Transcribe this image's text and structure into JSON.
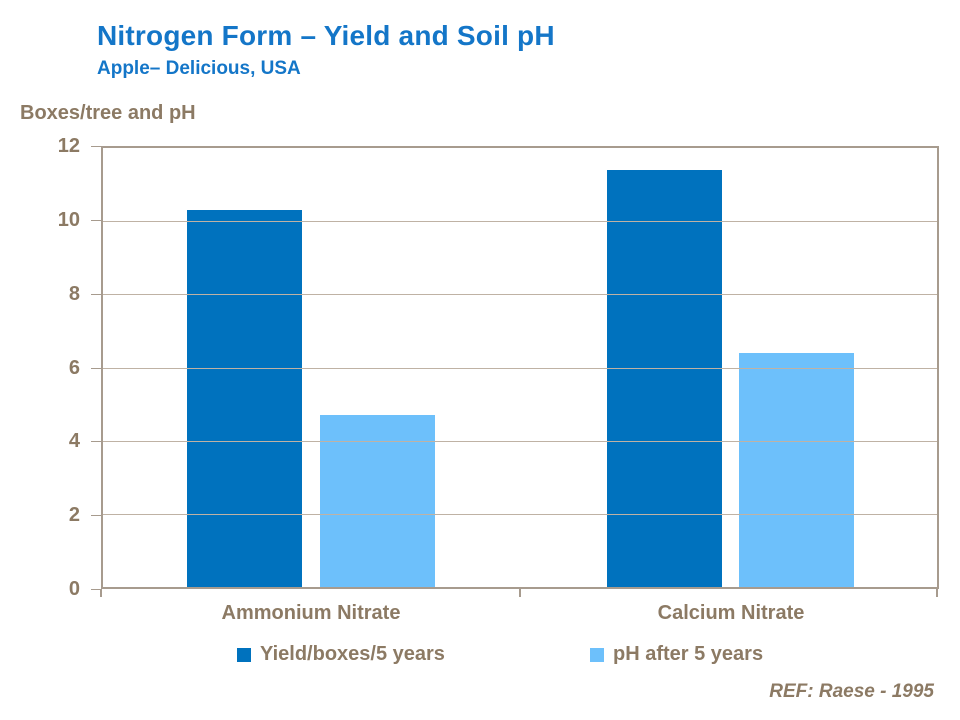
{
  "slide": {
    "title": "Nitrogen Form – Yield and Soil pH",
    "subtitle": "Apple– Delicious, USA",
    "axis_title": "Boxes/tree and pH",
    "reference": "REF: Raese - 1995"
  },
  "colors": {
    "title_blue": "#1476c8",
    "text_brown": "#8c7a64",
    "plot_border": "#a79b8e",
    "gridline": "#bfb2a4",
    "yield_bar": "#0072be",
    "ph_bar": "#6dc0fb"
  },
  "chart_data": {
    "type": "bar",
    "title": "Nitrogen Form – Yield and Soil pH",
    "subtitle": "Apple– Delicious, USA",
    "categories": [
      "Ammonium Nitrate",
      "Calcium Nitrate"
    ],
    "series": [
      {
        "name": "Yield/boxes/5 years",
        "color": "#0072be",
        "values": [
          10.3,
          11.4
        ]
      },
      {
        "name": "pH after 5 years",
        "color": "#6dc0fb",
        "values": [
          4.7,
          6.4
        ]
      }
    ],
    "xlabel": "",
    "ylabel": "Boxes/tree and pH",
    "ylim": [
      0,
      12
    ],
    "yticks": [
      0,
      2,
      4,
      6,
      8,
      10,
      12
    ],
    "grid": true,
    "legend_position": "bottom",
    "annotation": "REF: Raese - 1995"
  }
}
